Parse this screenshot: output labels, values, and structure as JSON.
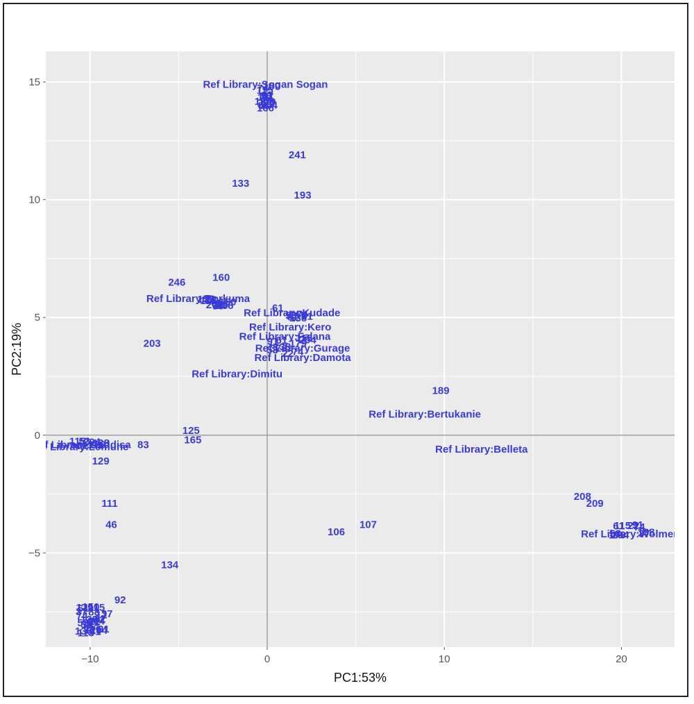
{
  "chart_data": {
    "type": "scatter",
    "xlabel": "PC1:53%",
    "ylabel": "PC2:19%",
    "xlim": [
      -12.5,
      23
    ],
    "ylim": [
      -9,
      16.3
    ],
    "xticks": [
      -10,
      0,
      10,
      20
    ],
    "yticks": [
      -5,
      0,
      5,
      10,
      15
    ],
    "xtick_labels": [
      "−10",
      "0",
      "10",
      "20"
    ],
    "ytick_labels": [
      "−5",
      "0",
      "5",
      "10",
      "15"
    ],
    "grid": true,
    "zero_lines": true,
    "colors": {
      "panel": "#ebebeb",
      "grid": "#ffffff",
      "zero_line": "#9a9a9a",
      "label": "#3a3ad6"
    },
    "points": [
      {
        "label": "Ref Library:Sogan Sogan",
        "x": -0.1,
        "y": 14.9
      },
      {
        "label": "166",
        "x": -0.1,
        "y": 13.9
      },
      {
        "label": "241",
        "x": 1.7,
        "y": 11.9
      },
      {
        "label": "133",
        "x": -1.5,
        "y": 10.7
      },
      {
        "label": "193",
        "x": 2.0,
        "y": 10.2
      },
      {
        "label": "246",
        "x": -5.1,
        "y": 6.5
      },
      {
        "label": "160",
        "x": -2.6,
        "y": 6.7
      },
      {
        "label": "Ref Library:Borkuma",
        "x": -3.9,
        "y": 5.8
      },
      {
        "label": "61",
        "x": 0.6,
        "y": 5.4
      },
      {
        "label": "Ref Library:Kudade",
        "x": 1.4,
        "y": 5.2
      },
      {
        "label": "Ref Library:Kero",
        "x": 1.3,
        "y": 4.6
      },
      {
        "label": "Ref Library:Falana",
        "x": 1.0,
        "y": 4.2
      },
      {
        "label": "Ref Library:Gurage",
        "x": 2.0,
        "y": 3.7
      },
      {
        "label": "Ref Library:Damota",
        "x": 2.0,
        "y": 3.3
      },
      {
        "label": "203",
        "x": -6.5,
        "y": 3.9
      },
      {
        "label": "Ref Library:Dimitu",
        "x": -1.7,
        "y": 2.6
      },
      {
        "label": "189",
        "x": 9.8,
        "y": 1.9
      },
      {
        "label": "Ref Library:Bertukanie",
        "x": 8.9,
        "y": 0.9
      },
      {
        "label": "125",
        "x": -4.3,
        "y": 0.2
      },
      {
        "label": "165",
        "x": -4.2,
        "y": -0.2
      },
      {
        "label": "Ref Library:Gaddisa",
        "x": -10.5,
        "y": -0.4
      },
      {
        "label": "83",
        "x": -7.0,
        "y": -0.4
      },
      {
        "label": "Ref Library:Lemune",
        "x": -10.6,
        "y": -0.5
      },
      {
        "label": "Ref Library:Belleta",
        "x": 12.1,
        "y": -0.6
      },
      {
        "label": "129",
        "x": -9.4,
        "y": -1.1
      },
      {
        "label": "111",
        "x": -8.9,
        "y": -2.9
      },
      {
        "label": "208",
        "x": 17.8,
        "y": -2.6
      },
      {
        "label": "209",
        "x": 18.5,
        "y": -2.9
      },
      {
        "label": "46",
        "x": -8.8,
        "y": -3.8
      },
      {
        "label": "107",
        "x": 5.7,
        "y": -3.8
      },
      {
        "label": "106",
        "x": 3.9,
        "y": -4.1
      },
      {
        "label": "Ref Library:Wolmera",
        "x": 20.6,
        "y": -4.2
      },
      {
        "label": "134",
        "x": -5.5,
        "y": -5.5
      },
      {
        "label": "92",
        "x": -8.3,
        "y": -7.0
      }
    ],
    "clusters": [
      {
        "x": 0.0,
        "y": 14.4,
        "n": 14,
        "spread": [
          0.6,
          0.9
        ]
      },
      {
        "x": -2.7,
        "y": 5.6,
        "n": 12,
        "spread": [
          1.8,
          0.4
        ]
      },
      {
        "x": 1.8,
        "y": 5.1,
        "n": 6,
        "spread": [
          1.0,
          0.3
        ]
      },
      {
        "x": 1.0,
        "y": 3.8,
        "n": 10,
        "spread": [
          3.0,
          0.7
        ]
      },
      {
        "x": -9.8,
        "y": -0.4,
        "n": 8,
        "spread": [
          2.2,
          0.3
        ]
      },
      {
        "x": 20.6,
        "y": -4.0,
        "n": 10,
        "spread": [
          2.0,
          0.5
        ]
      },
      {
        "x": -9.7,
        "y": -7.8,
        "n": 24,
        "spread": [
          1.6,
          1.2
        ]
      }
    ]
  }
}
